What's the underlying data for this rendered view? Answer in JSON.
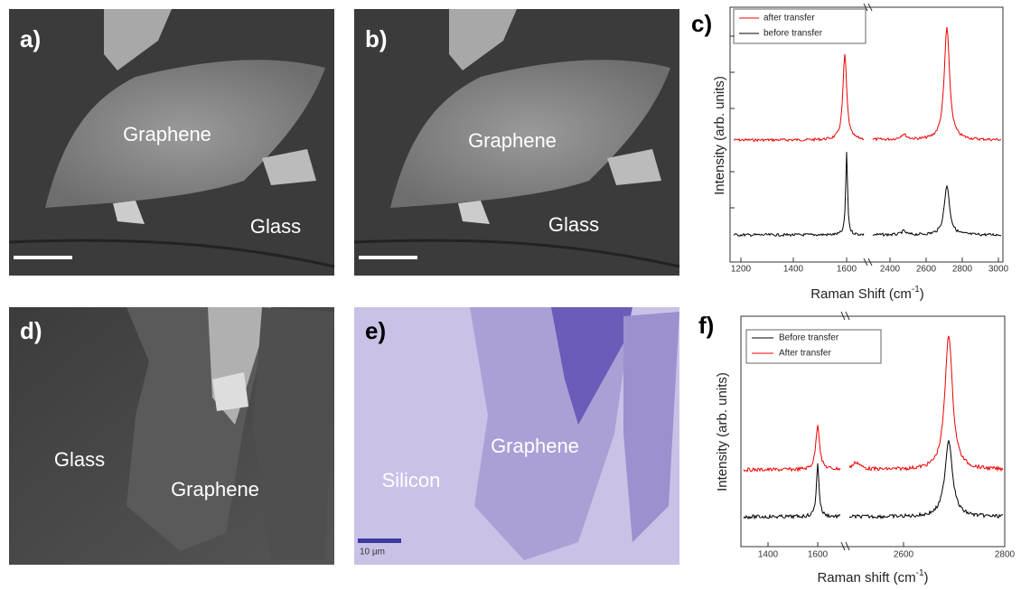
{
  "panels": {
    "a": {
      "label": "a)",
      "texts": [
        "Graphene",
        "Glass"
      ]
    },
    "b": {
      "label": "b)",
      "texts": [
        "Graphene",
        "Glass"
      ]
    },
    "c": {
      "label": "c)",
      "legend": [
        "after transfer",
        "before transfer"
      ],
      "xticks": [
        1200,
        1400,
        1600,
        2400,
        2600,
        2800,
        3000
      ],
      "y_label": "Intensity (arb. units)",
      "x_label": [
        "Raman Shift (cm",
        "-1",
        ")"
      ]
    },
    "d": {
      "label": "d)",
      "texts": [
        "Glass",
        "Graphene"
      ]
    },
    "e": {
      "label": "e)",
      "texts": [
        "Silicon",
        "Graphene",
        "10 µm"
      ]
    },
    "f": {
      "label": "f)",
      "legend": [
        "Before transfer",
        "After transfer"
      ],
      "xticks": [
        1400,
        1600,
        2600,
        2800
      ],
      "y_label": "Intensity (arb. units)",
      "x_label": [
        "Raman shift (cm",
        "-1",
        ")"
      ]
    }
  }
}
